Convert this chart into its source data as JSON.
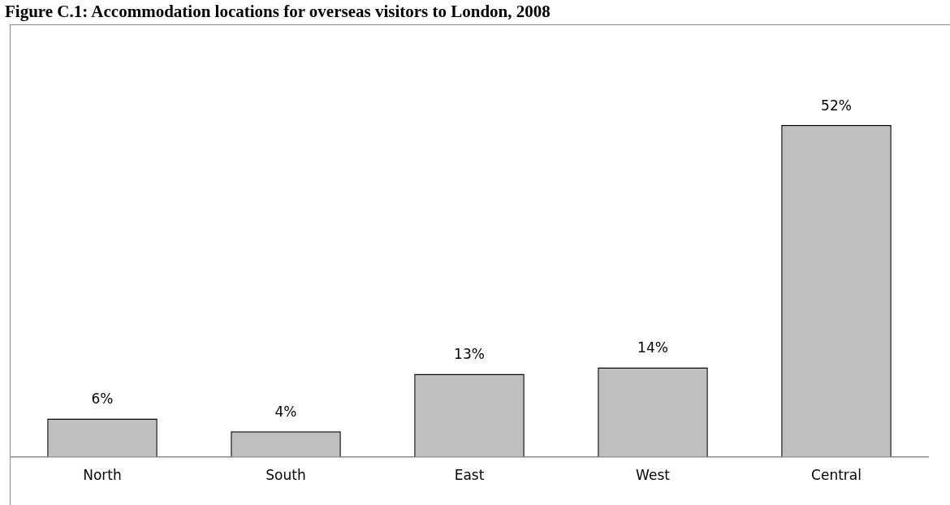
{
  "chart_data": {
    "type": "bar",
    "title": "Figure C.1: Accommodation locations for overseas visitors to London, 2008",
    "categories": [
      "North",
      "South",
      "East",
      "West",
      "Central"
    ],
    "values": [
      6,
      4,
      13,
      14,
      52
    ],
    "color": "#bfbfbf",
    "value_labels": [
      "6%",
      "4%",
      "13%",
      "14%",
      "52%"
    ],
    "grid": false,
    "legend": false
  }
}
